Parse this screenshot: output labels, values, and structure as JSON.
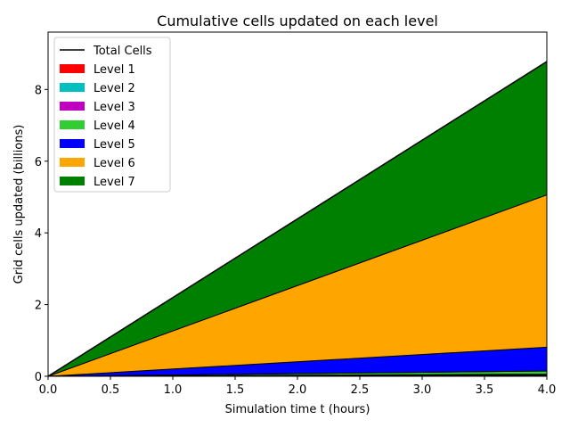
{
  "chart_data": {
    "type": "area",
    "stacked": true,
    "title": "Cumulative cells updated on each level",
    "xlabel": "Simulation time t (hours)",
    "ylabel": "Grid cells updated (billions)",
    "xlim": [
      0,
      4
    ],
    "ylim": [
      0,
      9.6
    ],
    "xticks": [
      "0.0",
      "0.5",
      "1.0",
      "1.5",
      "2.0",
      "2.5",
      "3.0",
      "3.5",
      "4.0"
    ],
    "yticks": [
      "0",
      "2",
      "4",
      "6",
      "8"
    ],
    "grid": false,
    "legend_position": "upper-left",
    "x": [
      0,
      4
    ],
    "total_series": {
      "name": "Total Cells",
      "color": "#000000",
      "values": [
        0,
        8.78
      ]
    },
    "series": [
      {
        "name": "Level 1",
        "color": "#ff0000",
        "values": [
          0,
          0.01
        ]
      },
      {
        "name": "Level 2",
        "color": "#00bfbf",
        "values": [
          0,
          0.02
        ]
      },
      {
        "name": "Level 3",
        "color": "#bf00bf",
        "values": [
          0,
          0.03
        ]
      },
      {
        "name": "Level 4",
        "color": "#32cd32",
        "values": [
          0,
          0.09
        ]
      },
      {
        "name": "Level 5",
        "color": "#0000ff",
        "values": [
          0,
          0.66
        ]
      },
      {
        "name": "Level 6",
        "color": "#ffa500",
        "values": [
          0,
          4.25
        ]
      },
      {
        "name": "Level 7",
        "color": "#008000",
        "values": [
          0,
          3.72
        ]
      }
    ]
  }
}
